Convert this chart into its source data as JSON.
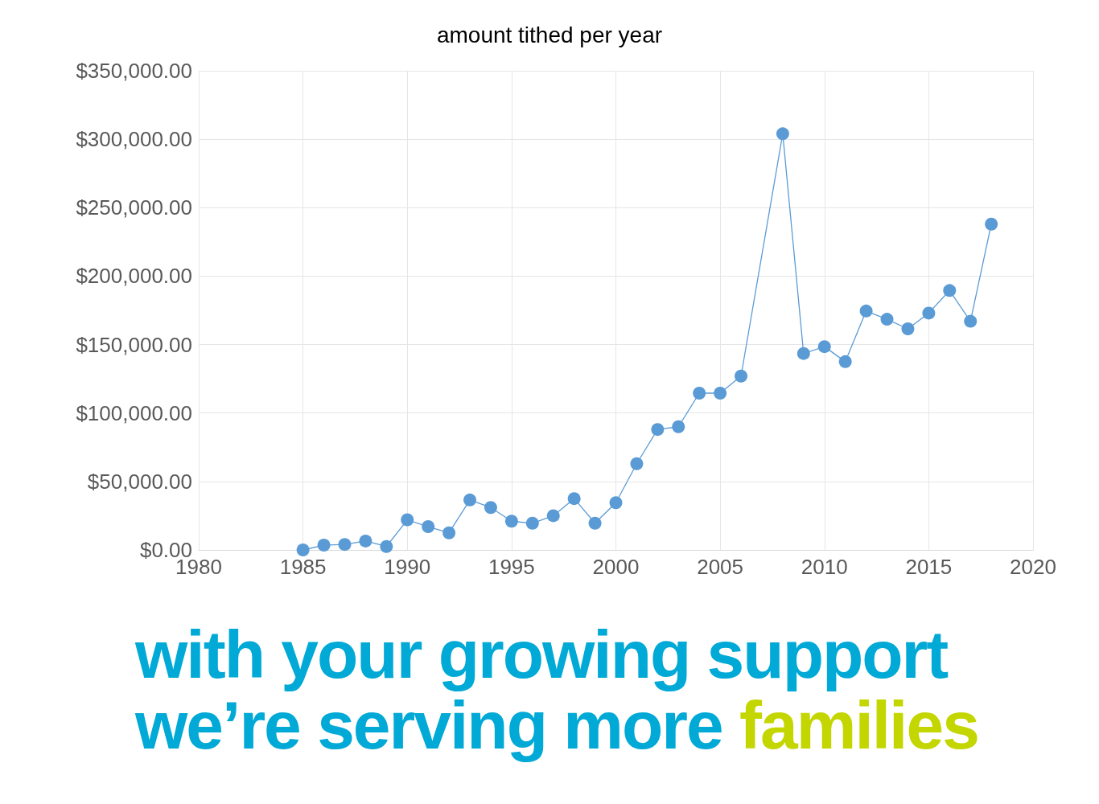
{
  "chart_data": {
    "type": "line",
    "title": "amount tithed per year",
    "x": [
      1985,
      1986,
      1987,
      1988,
      1989,
      1990,
      1991,
      1992,
      1993,
      1994,
      1995,
      1996,
      1997,
      1998,
      1999,
      2000,
      2001,
      2002,
      2003,
      2004,
      2005,
      2006,
      2008,
      2009,
      2010,
      2011,
      2012,
      2013,
      2014,
      2015,
      2016,
      2017,
      2018
    ],
    "series": [
      {
        "color": "#5b9bd5",
        "values": [
          0,
          3500,
          4000,
          6500,
          2500,
          22000,
          17000,
          12500,
          36500,
          31000,
          21000,
          19500,
          25000,
          37500,
          19500,
          34500,
          63000,
          88000,
          90000,
          114500,
          114500,
          127000,
          304000,
          143500,
          148500,
          137500,
          174500,
          168500,
          161500,
          173000,
          189500,
          167000,
          238000
        ]
      }
    ],
    "xlim": [
      1980,
      2020
    ],
    "xticks": [
      1980,
      1985,
      1990,
      1995,
      2000,
      2005,
      2010,
      2015,
      2020
    ],
    "ylim": [
      0,
      350000
    ],
    "yticks": [
      {
        "value": 0,
        "label": "$0.00"
      },
      {
        "value": 50000,
        "label": "$50,000.00"
      },
      {
        "value": 100000,
        "label": "$100,000.00"
      },
      {
        "value": 150000,
        "label": "$150,000.00"
      },
      {
        "value": 200000,
        "label": "$200,000.00"
      },
      {
        "value": 250000,
        "label": "$250,000.00"
      },
      {
        "value": 300000,
        "label": "$300,000.00"
      },
      {
        "value": 350000,
        "label": "$350,000.00"
      }
    ],
    "grid": true,
    "marker": "circle",
    "line_style": "solid",
    "annotations": [
      "with your growing support",
      "we’re serving more",
      "families"
    ]
  }
}
